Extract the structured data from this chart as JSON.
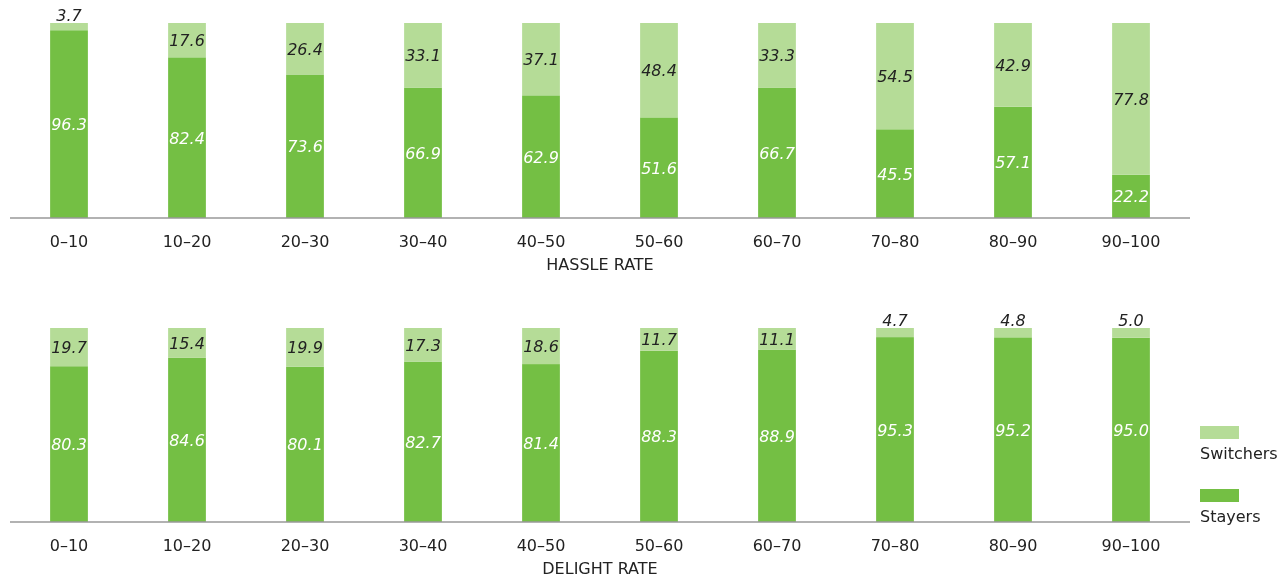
{
  "chart_data": [
    {
      "type": "bar",
      "stacked": true,
      "xlabel": "HASSLE RATE",
      "data_labels": true,
      "categories": [
        "0–10",
        "10–20",
        "20–30",
        "30–40",
        "40–50",
        "50–60",
        "60–70",
        "70–80",
        "80–90",
        "90–100"
      ],
      "series": [
        {
          "color": "#74bf44",
          "values": [
            96.3,
            82.4,
            73.6,
            66.9,
            62.9,
            51.6,
            66.7,
            45.5,
            57.1,
            22.2
          ]
        },
        {
          "color": "#b5dc97",
          "values": [
            3.7,
            17.6,
            26.4,
            33.1,
            37.1,
            48.4,
            33.3,
            54.5,
            42.9,
            77.8
          ]
        }
      ]
    },
    {
      "type": "bar",
      "stacked": true,
      "xlabel": "DELIGHT RATE",
      "legend": "right",
      "categories": [
        "0–10",
        "10–20",
        "20–30",
        "30–40",
        "40–50",
        "50–60",
        "60–70",
        "70–80",
        "80–90",
        "90–100"
      ],
      "series": [
        {
          "name": "Stayers",
          "color": "#74bf44",
          "values": [
            80.3,
            84.6,
            80.1,
            82.7,
            81.4,
            88.3,
            88.9,
            95.3,
            95.2,
            95.0
          ],
          "value_labels": [
            "80.3",
            "84.6",
            "80.1",
            "82.7",
            "81.4",
            "88.3",
            "88.9",
            "95.3",
            "95.2",
            "95.0"
          ]
        },
        {
          "name": "Switchers",
          "color": "#b5dc97",
          "values": [
            19.7,
            15.4,
            19.9,
            17.3,
            18.6,
            11.7,
            11.1,
            4.7,
            4.8,
            5.0
          ],
          "value_labels": [
            "19.7",
            "15.4",
            "19.9",
            "17.3",
            "18.6",
            "11.7",
            "11.1",
            "4.7",
            "4.8",
            "5.0"
          ]
        }
      ]
    }
  ]
}
